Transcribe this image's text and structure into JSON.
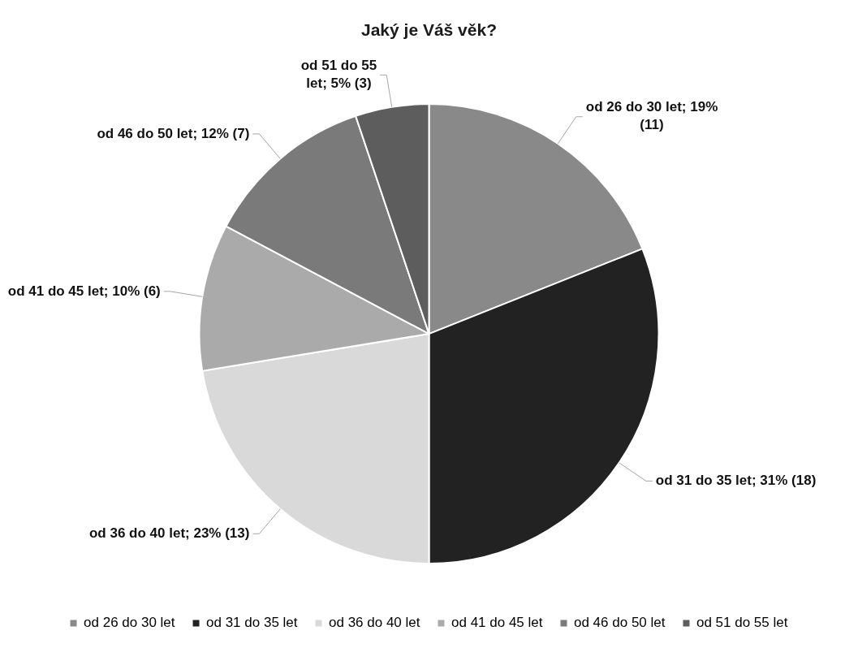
{
  "chart_data": {
    "type": "pie",
    "title": "Jaký je Váš věk?",
    "categories": [
      "od 26 do 30 let",
      "od 31 do 35 let",
      "od 36 do 40 let",
      "od 41 do 45 let",
      "od 46 do 50 let",
      "od 51 do 55 let"
    ],
    "values": [
      11,
      18,
      13,
      6,
      7,
      3
    ],
    "colors": [
      "#898989",
      "#222222",
      "#d9d9d9",
      "#aaaaaa",
      "#7a7a7a",
      "#5d5d5d"
    ],
    "value_labels": [
      "od 26 do 30 let; 19% (11)",
      "od 31 do 35 let; 31% (18)",
      "od 36 do 40 let; 23% (13)",
      "od 41 do 45 let; 10% (6)",
      "od 46 do 50 let; 12% (7)",
      "od 51 do 55 let; 5% (3)"
    ],
    "legend": "bottom"
  }
}
